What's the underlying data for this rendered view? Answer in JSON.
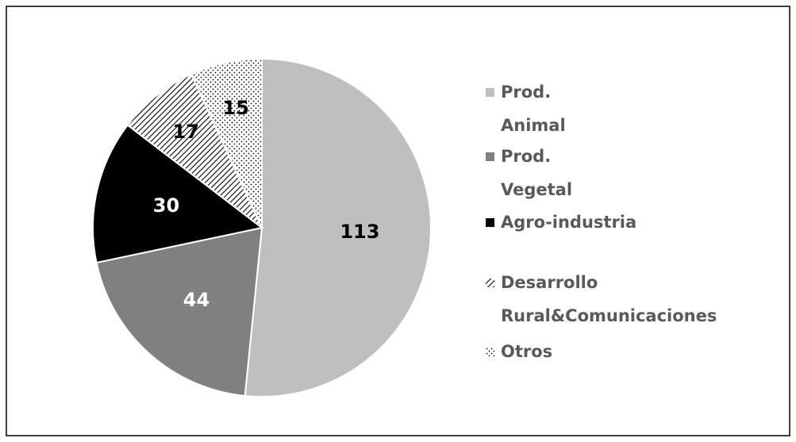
{
  "chart_data": {
    "type": "pie",
    "categories": [
      "Prod. Animal",
      "Prod. Vegetal",
      "Agro-industria",
      "Desarrollo Rural&Comunicaciones",
      "Otros"
    ],
    "values": [
      113,
      44,
      30,
      17,
      15
    ],
    "colors": [
      "#bfbfbf",
      "#808080",
      "#000000",
      "#000000",
      "#000000"
    ],
    "patterns": [
      null,
      null,
      null,
      "hatch",
      "dots"
    ],
    "legend": "right"
  }
}
